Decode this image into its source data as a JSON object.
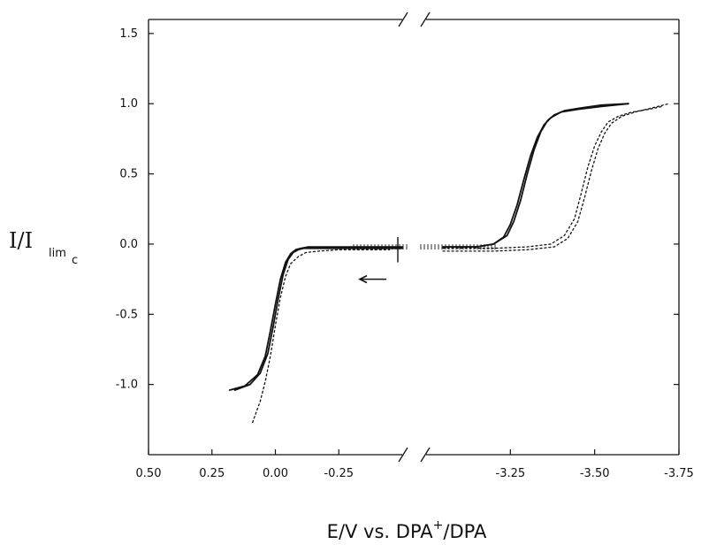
{
  "chart_data": {
    "type": "line",
    "xlabel": "E/V vs. DPA",
    "xlabel_sup": "+",
    "xlabel_tail": "/DPA",
    "ylabel_main": "I/I",
    "ylabel_sub": "lim",
    "ylabel_subsub": "c",
    "axis_break": true,
    "left_xlim": [
      0.5,
      -0.5
    ],
    "right_xlim": [
      -3.0,
      -3.75
    ],
    "ylim": [
      -1.5,
      1.6
    ],
    "yticks": [
      "1.5",
      "1.0",
      "0.5",
      "0.0",
      "-0.5",
      "-1.0"
    ],
    "ytick_values": [
      1.5,
      1.0,
      0.5,
      0.0,
      -0.5,
      -1.0
    ],
    "left_xticks": [
      "0.50",
      "0.25",
      "0.00",
      "-0.25"
    ],
    "left_xtick_values": [
      0.5,
      0.25,
      0.0,
      -0.25
    ],
    "right_xticks": [
      "-3.25",
      "-3.50",
      "-3.75"
    ],
    "right_xtick_values": [
      -3.25,
      -3.5,
      -3.75
    ],
    "arrow_direction": "left",
    "series": [
      {
        "style": "solid",
        "segment": "left",
        "x": [
          0.18,
          0.12,
          0.07,
          0.04,
          0.02,
          0.0,
          -0.02,
          -0.04,
          -0.06,
          -0.08,
          -0.1,
          -0.13,
          -0.2,
          -0.3,
          -0.38,
          -0.5
        ],
        "y": [
          -1.04,
          -1.01,
          -0.93,
          -0.8,
          -0.62,
          -0.43,
          -0.25,
          -0.13,
          -0.07,
          -0.04,
          -0.03,
          -0.02,
          -0.02,
          -0.02,
          -0.02,
          -0.02
        ]
      },
      {
        "style": "solid",
        "segment": "left",
        "x": [
          0.16,
          0.1,
          0.06,
          0.03,
          0.01,
          -0.01,
          -0.03,
          -0.05,
          -0.07,
          -0.09,
          -0.11,
          -0.14,
          -0.2,
          -0.3,
          -0.38,
          -0.5
        ],
        "y": [
          -1.04,
          -1.0,
          -0.92,
          -0.78,
          -0.6,
          -0.4,
          -0.22,
          -0.11,
          -0.06,
          -0.04,
          -0.03,
          -0.03,
          -0.03,
          -0.03,
          -0.03,
          -0.03
        ]
      },
      {
        "style": "dotted",
        "segment": "left",
        "x": [
          0.09,
          0.06,
          0.04,
          0.02,
          0.0,
          -0.02,
          -0.04,
          -0.06,
          -0.09,
          -0.12,
          -0.17,
          -0.25,
          -0.35,
          -0.45
        ],
        "y": [
          -1.27,
          -1.12,
          -0.98,
          -0.8,
          -0.58,
          -0.38,
          -0.23,
          -0.14,
          -0.09,
          -0.06,
          -0.05,
          -0.04,
          -0.04,
          -0.04
        ]
      },
      {
        "style": "solid",
        "segment": "right",
        "x": [
          -3.05,
          -3.15,
          -3.2,
          -3.23,
          -3.25,
          -3.27,
          -3.29,
          -3.31,
          -3.33,
          -3.35,
          -3.37,
          -3.4,
          -3.45,
          -3.52,
          -3.6
        ],
        "y": [
          -0.02,
          -0.02,
          0.0,
          0.05,
          0.14,
          0.28,
          0.46,
          0.63,
          0.76,
          0.85,
          0.9,
          0.94,
          0.96,
          0.98,
          1.0
        ]
      },
      {
        "style": "solid",
        "segment": "right",
        "x": [
          -3.05,
          -3.15,
          -3.2,
          -3.24,
          -3.26,
          -3.28,
          -3.3,
          -3.32,
          -3.34,
          -3.36,
          -3.38,
          -3.41,
          -3.46,
          -3.52,
          -3.6
        ],
        "y": [
          -0.02,
          -0.02,
          0.0,
          0.06,
          0.16,
          0.31,
          0.5,
          0.67,
          0.8,
          0.88,
          0.92,
          0.95,
          0.97,
          0.99,
          1.0
        ]
      },
      {
        "style": "dotted",
        "segment": "right",
        "x": [
          -3.05,
          -3.2,
          -3.3,
          -3.38,
          -3.42,
          -3.45,
          -3.47,
          -3.49,
          -3.51,
          -3.53,
          -3.55,
          -3.58,
          -3.62,
          -3.67,
          -3.72
        ],
        "y": [
          -0.05,
          -0.05,
          -0.04,
          -0.02,
          0.04,
          0.16,
          0.33,
          0.52,
          0.68,
          0.79,
          0.86,
          0.91,
          0.94,
          0.97,
          1.0
        ]
      },
      {
        "style": "dotted",
        "segment": "right",
        "x": [
          -3.05,
          -3.2,
          -3.3,
          -3.37,
          -3.41,
          -3.44,
          -3.46,
          -3.48,
          -3.5,
          -3.52,
          -3.54,
          -3.57,
          -3.61,
          -3.66,
          -3.7
        ],
        "y": [
          -0.03,
          -0.03,
          -0.02,
          0.0,
          0.06,
          0.18,
          0.36,
          0.55,
          0.7,
          0.8,
          0.87,
          0.91,
          0.94,
          0.96,
          0.98
        ]
      }
    ]
  }
}
